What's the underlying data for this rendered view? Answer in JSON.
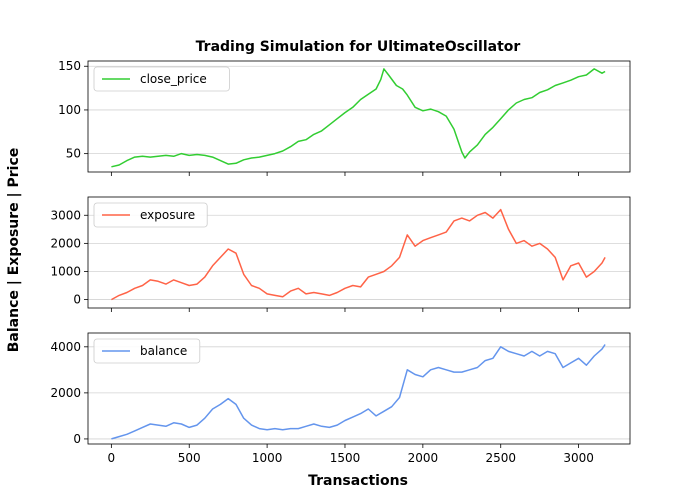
{
  "chart_data": {
    "type": "line",
    "title": "Trading Simulation for UltimateOscillator",
    "xlabel": "Transactions",
    "ylabel": "Balance | Exposure | Price",
    "xlim": [
      -150,
      3330
    ],
    "x_ticks": [
      0,
      500,
      1000,
      1500,
      2000,
      2500,
      3000
    ],
    "grid": "horizontal",
    "legend_position": "upper-left",
    "panels": [
      {
        "name": "close_price",
        "color": "#32cd32",
        "ylim": [
          29,
          156
        ],
        "y_ticks": [
          50,
          100,
          150
        ],
        "points": [
          [
            0,
            35
          ],
          [
            50,
            37
          ],
          [
            100,
            42
          ],
          [
            150,
            46
          ],
          [
            200,
            47
          ],
          [
            250,
            46
          ],
          [
            300,
            47
          ],
          [
            350,
            48
          ],
          [
            400,
            47
          ],
          [
            450,
            50
          ],
          [
            500,
            48
          ],
          [
            550,
            49
          ],
          [
            600,
            48
          ],
          [
            650,
            46
          ],
          [
            700,
            42
          ],
          [
            750,
            38
          ],
          [
            800,
            39
          ],
          [
            850,
            43
          ],
          [
            900,
            45
          ],
          [
            950,
            46
          ],
          [
            1000,
            48
          ],
          [
            1050,
            50
          ],
          [
            1100,
            53
          ],
          [
            1150,
            58
          ],
          [
            1200,
            64
          ],
          [
            1250,
            66
          ],
          [
            1300,
            72
          ],
          [
            1350,
            76
          ],
          [
            1400,
            83
          ],
          [
            1450,
            90
          ],
          [
            1500,
            97
          ],
          [
            1550,
            103
          ],
          [
            1600,
            112
          ],
          [
            1650,
            118
          ],
          [
            1700,
            124
          ],
          [
            1730,
            135
          ],
          [
            1750,
            147
          ],
          [
            1780,
            140
          ],
          [
            1830,
            128
          ],
          [
            1870,
            124
          ],
          [
            1900,
            117
          ],
          [
            1950,
            103
          ],
          [
            2000,
            99
          ],
          [
            2050,
            101
          ],
          [
            2100,
            98
          ],
          [
            2150,
            93
          ],
          [
            2200,
            78
          ],
          [
            2250,
            52
          ],
          [
            2270,
            45
          ],
          [
            2300,
            52
          ],
          [
            2350,
            60
          ],
          [
            2400,
            72
          ],
          [
            2450,
            80
          ],
          [
            2500,
            90
          ],
          [
            2550,
            100
          ],
          [
            2600,
            108
          ],
          [
            2650,
            112
          ],
          [
            2700,
            114
          ],
          [
            2750,
            120
          ],
          [
            2800,
            123
          ],
          [
            2850,
            128
          ],
          [
            2900,
            131
          ],
          [
            2950,
            134
          ],
          [
            3000,
            138
          ],
          [
            3050,
            140
          ],
          [
            3100,
            147
          ],
          [
            3150,
            142
          ],
          [
            3170,
            144
          ]
        ]
      },
      {
        "name": "exposure",
        "color": "#ff6347",
        "ylim": [
          -300,
          3650
        ],
        "y_ticks": [
          0,
          1000,
          2000,
          3000
        ],
        "points": [
          [
            0,
            0
          ],
          [
            50,
            150
          ],
          [
            100,
            250
          ],
          [
            150,
            400
          ],
          [
            200,
            500
          ],
          [
            250,
            700
          ],
          [
            300,
            650
          ],
          [
            350,
            550
          ],
          [
            400,
            700
          ],
          [
            450,
            600
          ],
          [
            500,
            500
          ],
          [
            550,
            550
          ],
          [
            600,
            800
          ],
          [
            650,
            1200
          ],
          [
            700,
            1500
          ],
          [
            750,
            1800
          ],
          [
            800,
            1650
          ],
          [
            850,
            900
          ],
          [
            900,
            500
          ],
          [
            950,
            400
          ],
          [
            1000,
            200
          ],
          [
            1050,
            150
          ],
          [
            1100,
            100
          ],
          [
            1150,
            300
          ],
          [
            1200,
            400
          ],
          [
            1250,
            200
          ],
          [
            1300,
            250
          ],
          [
            1350,
            200
          ],
          [
            1400,
            150
          ],
          [
            1450,
            250
          ],
          [
            1500,
            400
          ],
          [
            1550,
            500
          ],
          [
            1600,
            450
          ],
          [
            1650,
            800
          ],
          [
            1700,
            900
          ],
          [
            1750,
            1000
          ],
          [
            1800,
            1200
          ],
          [
            1850,
            1500
          ],
          [
            1900,
            2300
          ],
          [
            1950,
            1900
          ],
          [
            2000,
            2100
          ],
          [
            2050,
            2200
          ],
          [
            2100,
            2300
          ],
          [
            2150,
            2400
          ],
          [
            2200,
            2800
          ],
          [
            2250,
            2900
          ],
          [
            2300,
            2800
          ],
          [
            2350,
            3000
          ],
          [
            2400,
            3100
          ],
          [
            2450,
            2900
          ],
          [
            2500,
            3200
          ],
          [
            2550,
            2500
          ],
          [
            2600,
            2000
          ],
          [
            2650,
            2100
          ],
          [
            2700,
            1900
          ],
          [
            2750,
            2000
          ],
          [
            2800,
            1800
          ],
          [
            2850,
            1500
          ],
          [
            2900,
            700
          ],
          [
            2950,
            1200
          ],
          [
            3000,
            1300
          ],
          [
            3050,
            800
          ],
          [
            3100,
            1000
          ],
          [
            3150,
            1300
          ],
          [
            3170,
            1500
          ]
        ]
      },
      {
        "name": "balance",
        "color": "#6495ed",
        "ylim": [
          -220,
          4600
        ],
        "y_ticks": [
          0,
          2000,
          4000
        ],
        "points": [
          [
            0,
            0
          ],
          [
            50,
            100
          ],
          [
            100,
            200
          ],
          [
            150,
            350
          ],
          [
            200,
            500
          ],
          [
            250,
            650
          ],
          [
            300,
            600
          ],
          [
            350,
            550
          ],
          [
            400,
            700
          ],
          [
            450,
            650
          ],
          [
            500,
            500
          ],
          [
            550,
            600
          ],
          [
            600,
            900
          ],
          [
            650,
            1300
          ],
          [
            700,
            1500
          ],
          [
            750,
            1750
          ],
          [
            800,
            1500
          ],
          [
            850,
            900
          ],
          [
            900,
            600
          ],
          [
            950,
            450
          ],
          [
            1000,
            400
          ],
          [
            1050,
            450
          ],
          [
            1100,
            400
          ],
          [
            1150,
            450
          ],
          [
            1200,
            450
          ],
          [
            1250,
            550
          ],
          [
            1300,
            650
          ],
          [
            1350,
            550
          ],
          [
            1400,
            500
          ],
          [
            1450,
            600
          ],
          [
            1500,
            800
          ],
          [
            1550,
            950
          ],
          [
            1600,
            1100
          ],
          [
            1650,
            1300
          ],
          [
            1700,
            1000
          ],
          [
            1750,
            1200
          ],
          [
            1800,
            1400
          ],
          [
            1850,
            1800
          ],
          [
            1900,
            3000
          ],
          [
            1950,
            2800
          ],
          [
            2000,
            2700
          ],
          [
            2050,
            3000
          ],
          [
            2100,
            3100
          ],
          [
            2150,
            3000
          ],
          [
            2200,
            2900
          ],
          [
            2250,
            2900
          ],
          [
            2300,
            3000
          ],
          [
            2350,
            3100
          ],
          [
            2400,
            3400
          ],
          [
            2450,
            3500
          ],
          [
            2500,
            4000
          ],
          [
            2550,
            3800
          ],
          [
            2600,
            3700
          ],
          [
            2650,
            3600
          ],
          [
            2700,
            3800
          ],
          [
            2750,
            3600
          ],
          [
            2800,
            3800
          ],
          [
            2850,
            3700
          ],
          [
            2900,
            3100
          ],
          [
            2950,
            3300
          ],
          [
            3000,
            3500
          ],
          [
            3050,
            3200
          ],
          [
            3100,
            3600
          ],
          [
            3150,
            3900
          ],
          [
            3170,
            4100
          ]
        ]
      }
    ]
  }
}
